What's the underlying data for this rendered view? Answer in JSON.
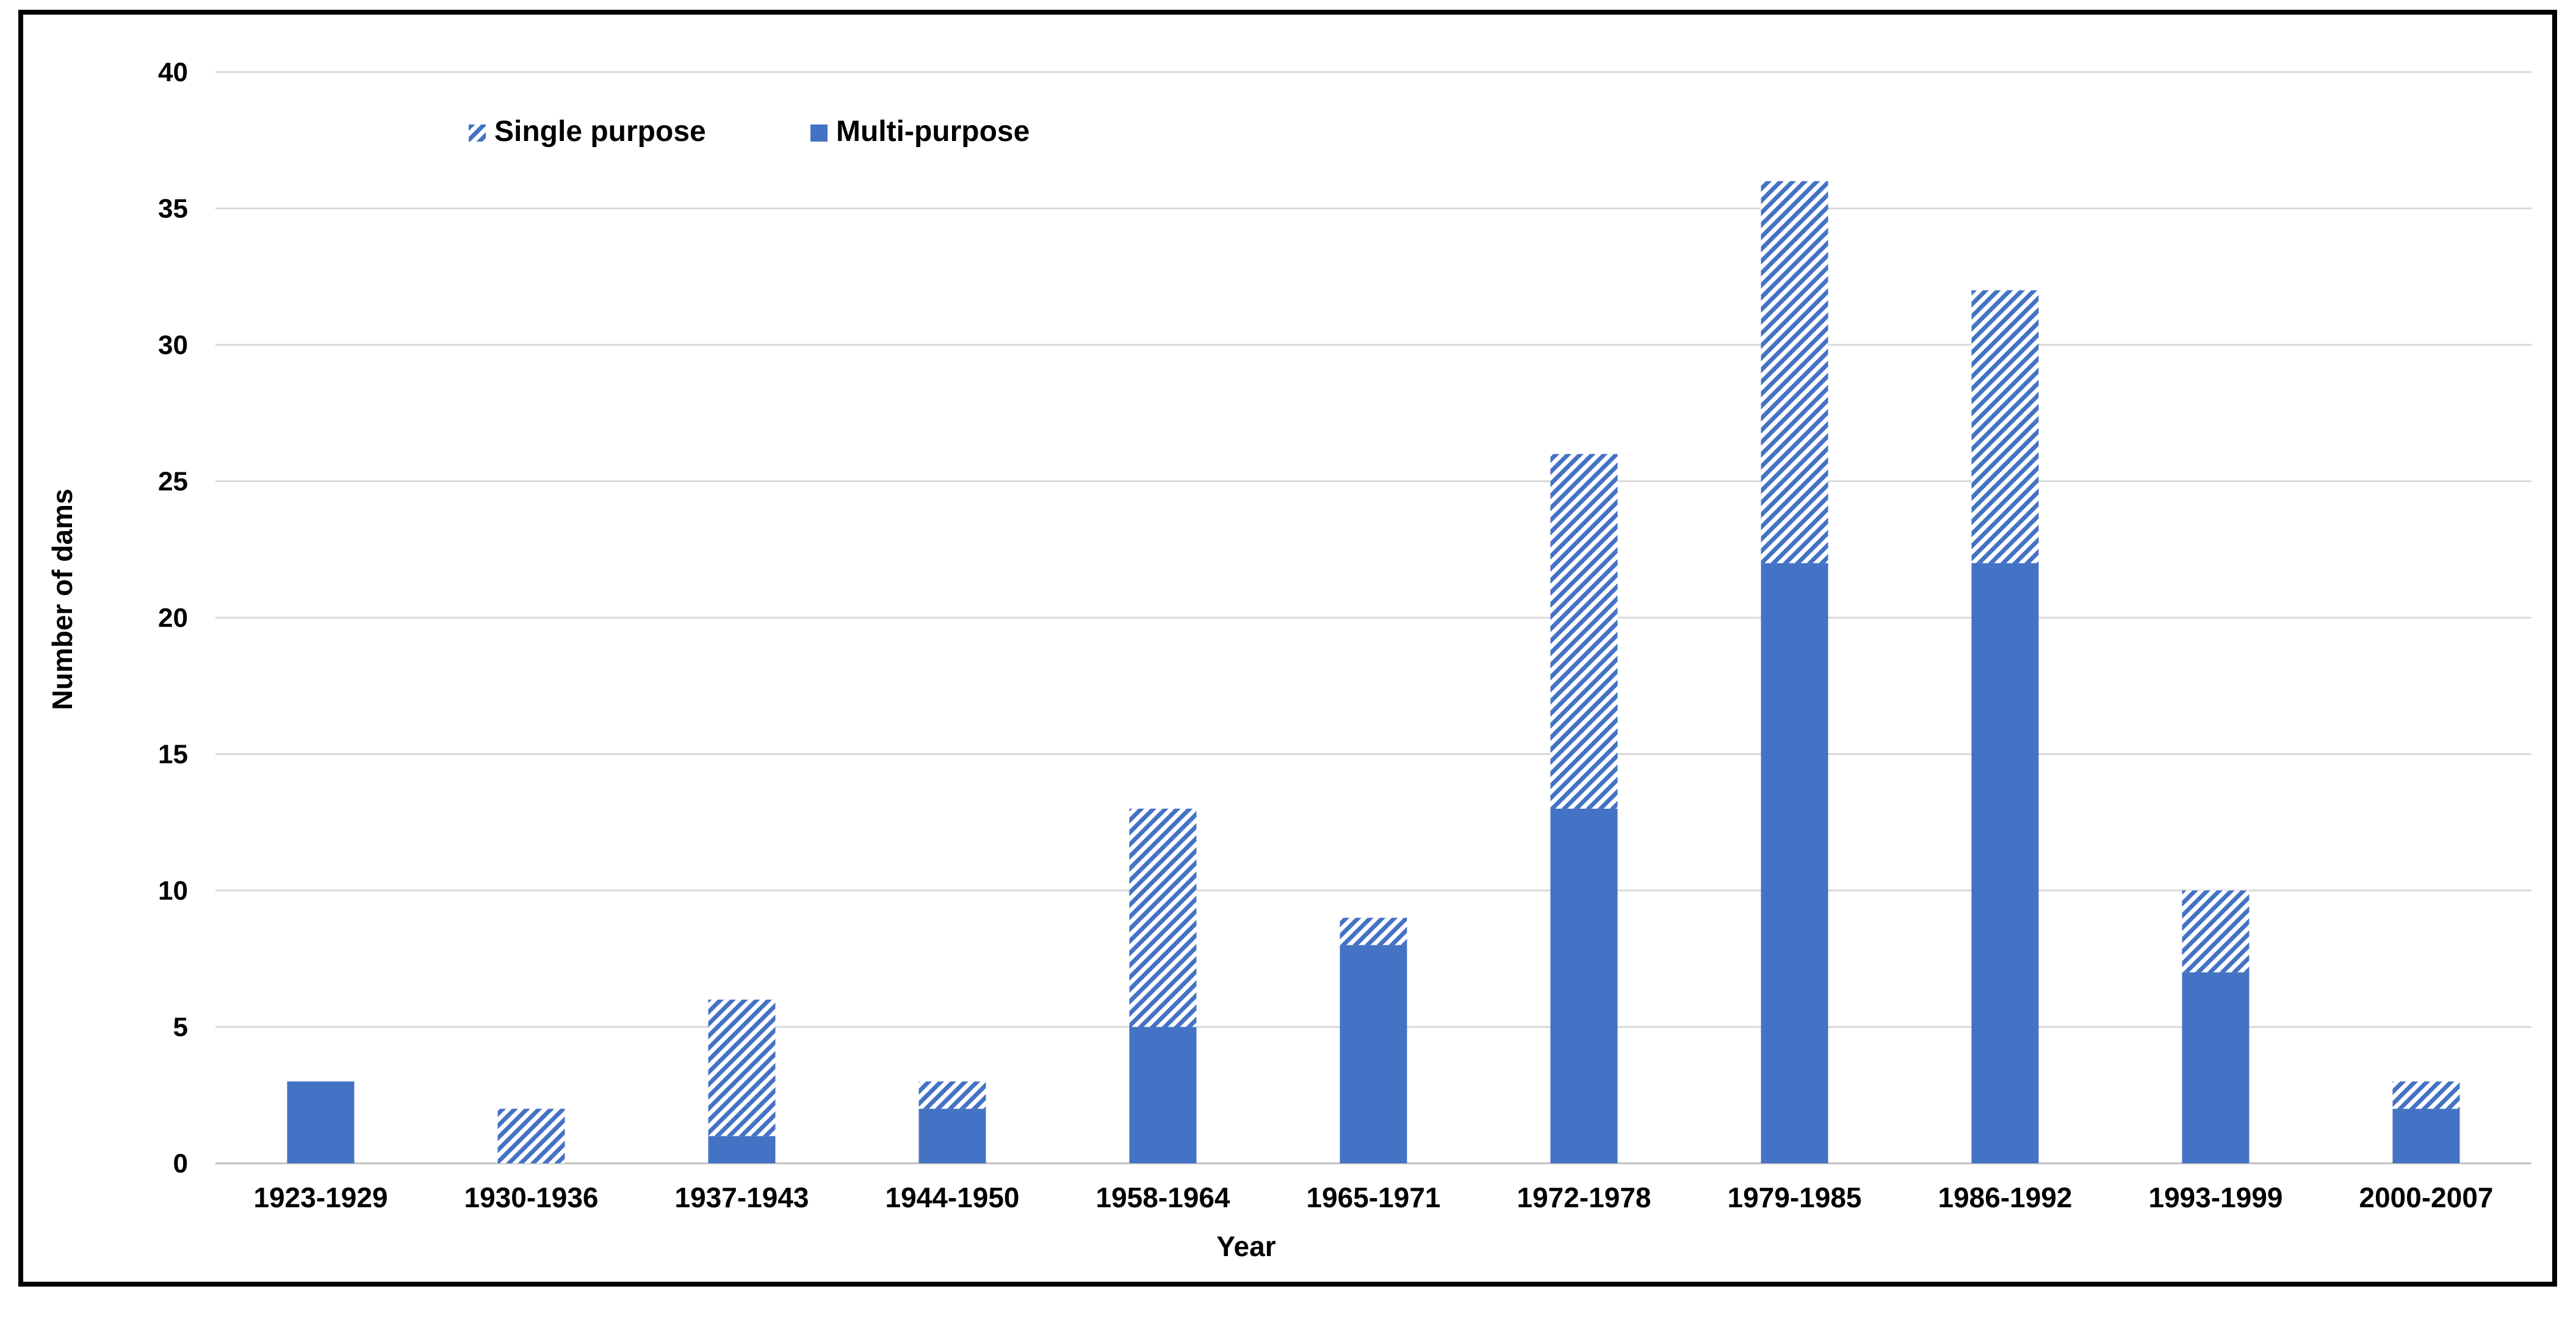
{
  "chart_data": {
    "type": "bar",
    "stacked": true,
    "categories": [
      "1923-1929",
      "1930-1936",
      "1937-1943",
      "1944-1950",
      "1958-1964",
      "1965-1971",
      "1972-1978",
      "1979-1985",
      "1986-1992",
      "1993-1999",
      "2000-2007"
    ],
    "series": [
      {
        "name": "Multi-purpose",
        "values": [
          3,
          0,
          1,
          2,
          5,
          8,
          13,
          22,
          22,
          7,
          2
        ],
        "color": "#4472C4",
        "fill": "solid"
      },
      {
        "name": "Single purpose",
        "values": [
          0,
          2,
          5,
          1,
          8,
          1,
          13,
          14,
          10,
          3,
          1
        ],
        "color": "#4472C4",
        "fill": "diagonal-hatch"
      }
    ],
    "xlabel": "Year",
    "ylabel": "Number of dams",
    "ylim": [
      0,
      40
    ],
    "yticks": [
      0,
      5,
      10,
      15,
      20,
      25,
      30,
      35,
      40
    ],
    "grid": true,
    "legend": {
      "position": "top-left",
      "order": [
        "Single purpose",
        "Multi-purpose"
      ]
    }
  }
}
